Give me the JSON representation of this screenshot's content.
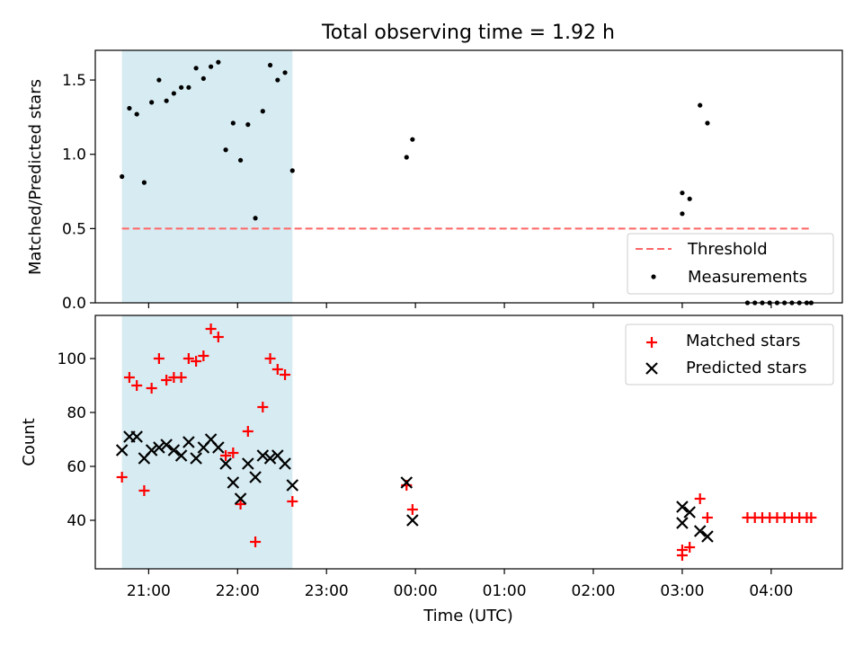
{
  "chart_data": [
    {
      "type": "scatter",
      "title": "Total observing time = 1.92 h",
      "xlabel": "",
      "ylabel": "Matched/Predicted stars",
      "ylim": [
        0,
        1.7
      ],
      "yticks": [
        "0.0",
        "0.5",
        "1.0",
        "1.5"
      ],
      "shaded_interval": {
        "start": "20:42",
        "end": "22:37",
        "color": "#add8e6"
      },
      "threshold": {
        "name": "Threshold",
        "value": 0.5,
        "x_start": "20:42",
        "x_end": "04:27",
        "color": "#ff6666"
      },
      "series": [
        {
          "name": "Measurements",
          "color": "#000000",
          "points": [
            [
              "20:42",
              0.85
            ],
            [
              "20:47",
              1.31
            ],
            [
              "20:52",
              1.27
            ],
            [
              "20:57",
              0.81
            ],
            [
              "21:02",
              1.35
            ],
            [
              "21:07",
              1.5
            ],
            [
              "21:12",
              1.36
            ],
            [
              "21:17",
              1.41
            ],
            [
              "21:22",
              1.45
            ],
            [
              "21:27",
              1.45
            ],
            [
              "21:32",
              1.58
            ],
            [
              "21:37",
              1.51
            ],
            [
              "21:42",
              1.59
            ],
            [
              "21:47",
              1.62
            ],
            [
              "21:52",
              1.03
            ],
            [
              "21:57",
              1.21
            ],
            [
              "22:02",
              0.96
            ],
            [
              "22:07",
              1.2
            ],
            [
              "22:12",
              0.57
            ],
            [
              "22:17",
              1.29
            ],
            [
              "22:22",
              1.6
            ],
            [
              "22:27",
              1.5
            ],
            [
              "22:32",
              1.55
            ],
            [
              "22:37",
              0.89
            ],
            [
              "23:54",
              0.98
            ],
            [
              "23:58",
              1.1
            ],
            [
              "03:00",
              0.74
            ],
            [
              "03:00",
              0.6
            ],
            [
              "03:05",
              0.7
            ],
            [
              "03:12",
              1.33
            ],
            [
              "03:17",
              1.21
            ],
            [
              "03:44",
              0.0
            ],
            [
              "03:49",
              0.0
            ],
            [
              "03:54",
              0.0
            ],
            [
              "03:59",
              0.0
            ],
            [
              "04:04",
              0.0
            ],
            [
              "04:09",
              0.0
            ],
            [
              "04:14",
              0.0
            ],
            [
              "04:19",
              0.0
            ],
            [
              "04:24",
              0.0
            ],
            [
              "04:27",
              0.0
            ]
          ]
        }
      ],
      "legend": {
        "position": "lower-right",
        "entries": [
          "Threshold",
          "Measurements"
        ]
      }
    },
    {
      "type": "scatter",
      "title": "",
      "xlabel": "Time (UTC)",
      "ylabel": "Count",
      "ylim": [
        22,
        116
      ],
      "yticks": [
        "40",
        "60",
        "80",
        "100"
      ],
      "xticks": [
        "21:00",
        "22:00",
        "23:00",
        "00:00",
        "01:00",
        "02:00",
        "03:00",
        "04:00"
      ],
      "xlim": [
        "20:24",
        "04:48"
      ],
      "shaded_interval": {
        "start": "20:42",
        "end": "22:37",
        "color": "#add8e6"
      },
      "series": [
        {
          "name": "Matched stars",
          "marker": "plus",
          "color": "#ff0000",
          "points": [
            [
              "20:42",
              56
            ],
            [
              "20:47",
              93
            ],
            [
              "20:52",
              90
            ],
            [
              "20:57",
              51
            ],
            [
              "21:02",
              89
            ],
            [
              "21:07",
              100
            ],
            [
              "21:12",
              92
            ],
            [
              "21:17",
              93
            ],
            [
              "21:22",
              93
            ],
            [
              "21:27",
              100
            ],
            [
              "21:32",
              99
            ],
            [
              "21:37",
              101
            ],
            [
              "21:42",
              111
            ],
            [
              "21:47",
              108
            ],
            [
              "21:52",
              64
            ],
            [
              "21:57",
              65
            ],
            [
              "22:02",
              46
            ],
            [
              "22:07",
              73
            ],
            [
              "22:12",
              32
            ],
            [
              "22:17",
              82
            ],
            [
              "22:22",
              100
            ],
            [
              "22:27",
              96
            ],
            [
              "22:32",
              94
            ],
            [
              "22:37",
              47
            ],
            [
              "23:54",
              53
            ],
            [
              "23:58",
              44
            ],
            [
              "03:00",
              27
            ],
            [
              "03:00",
              29
            ],
            [
              "03:05",
              30
            ],
            [
              "03:12",
              48
            ],
            [
              "03:17",
              41
            ],
            [
              "03:44",
              41
            ],
            [
              "03:49",
              41
            ],
            [
              "03:54",
              41
            ],
            [
              "03:59",
              41
            ],
            [
              "04:04",
              41
            ],
            [
              "04:09",
              41
            ],
            [
              "04:14",
              41
            ],
            [
              "04:19",
              41
            ],
            [
              "04:24",
              41
            ],
            [
              "04:27",
              41
            ]
          ]
        },
        {
          "name": "Predicted stars",
          "marker": "x",
          "color": "#000000",
          "points": [
            [
              "20:42",
              66
            ],
            [
              "20:47",
              71
            ],
            [
              "20:52",
              71
            ],
            [
              "20:57",
              63
            ],
            [
              "21:02",
              66
            ],
            [
              "21:07",
              67
            ],
            [
              "21:12",
              68
            ],
            [
              "21:17",
              66
            ],
            [
              "21:22",
              64
            ],
            [
              "21:27",
              69
            ],
            [
              "21:32",
              63
            ],
            [
              "21:37",
              67
            ],
            [
              "21:42",
              70
            ],
            [
              "21:47",
              67
            ],
            [
              "21:52",
              61
            ],
            [
              "21:57",
              54
            ],
            [
              "22:02",
              48
            ],
            [
              "22:07",
              61
            ],
            [
              "22:12",
              56
            ],
            [
              "22:17",
              64
            ],
            [
              "22:22",
              63
            ],
            [
              "22:27",
              64
            ],
            [
              "22:32",
              61
            ],
            [
              "22:37",
              53
            ],
            [
              "23:54",
              54
            ],
            [
              "23:58",
              40
            ],
            [
              "03:00",
              45
            ],
            [
              "03:00",
              39
            ],
            [
              "03:05",
              43
            ],
            [
              "03:12",
              36
            ],
            [
              "03:17",
              34
            ]
          ]
        }
      ],
      "legend": {
        "position": "upper-right",
        "entries": [
          "Matched stars",
          "Predicted stars"
        ]
      }
    }
  ]
}
